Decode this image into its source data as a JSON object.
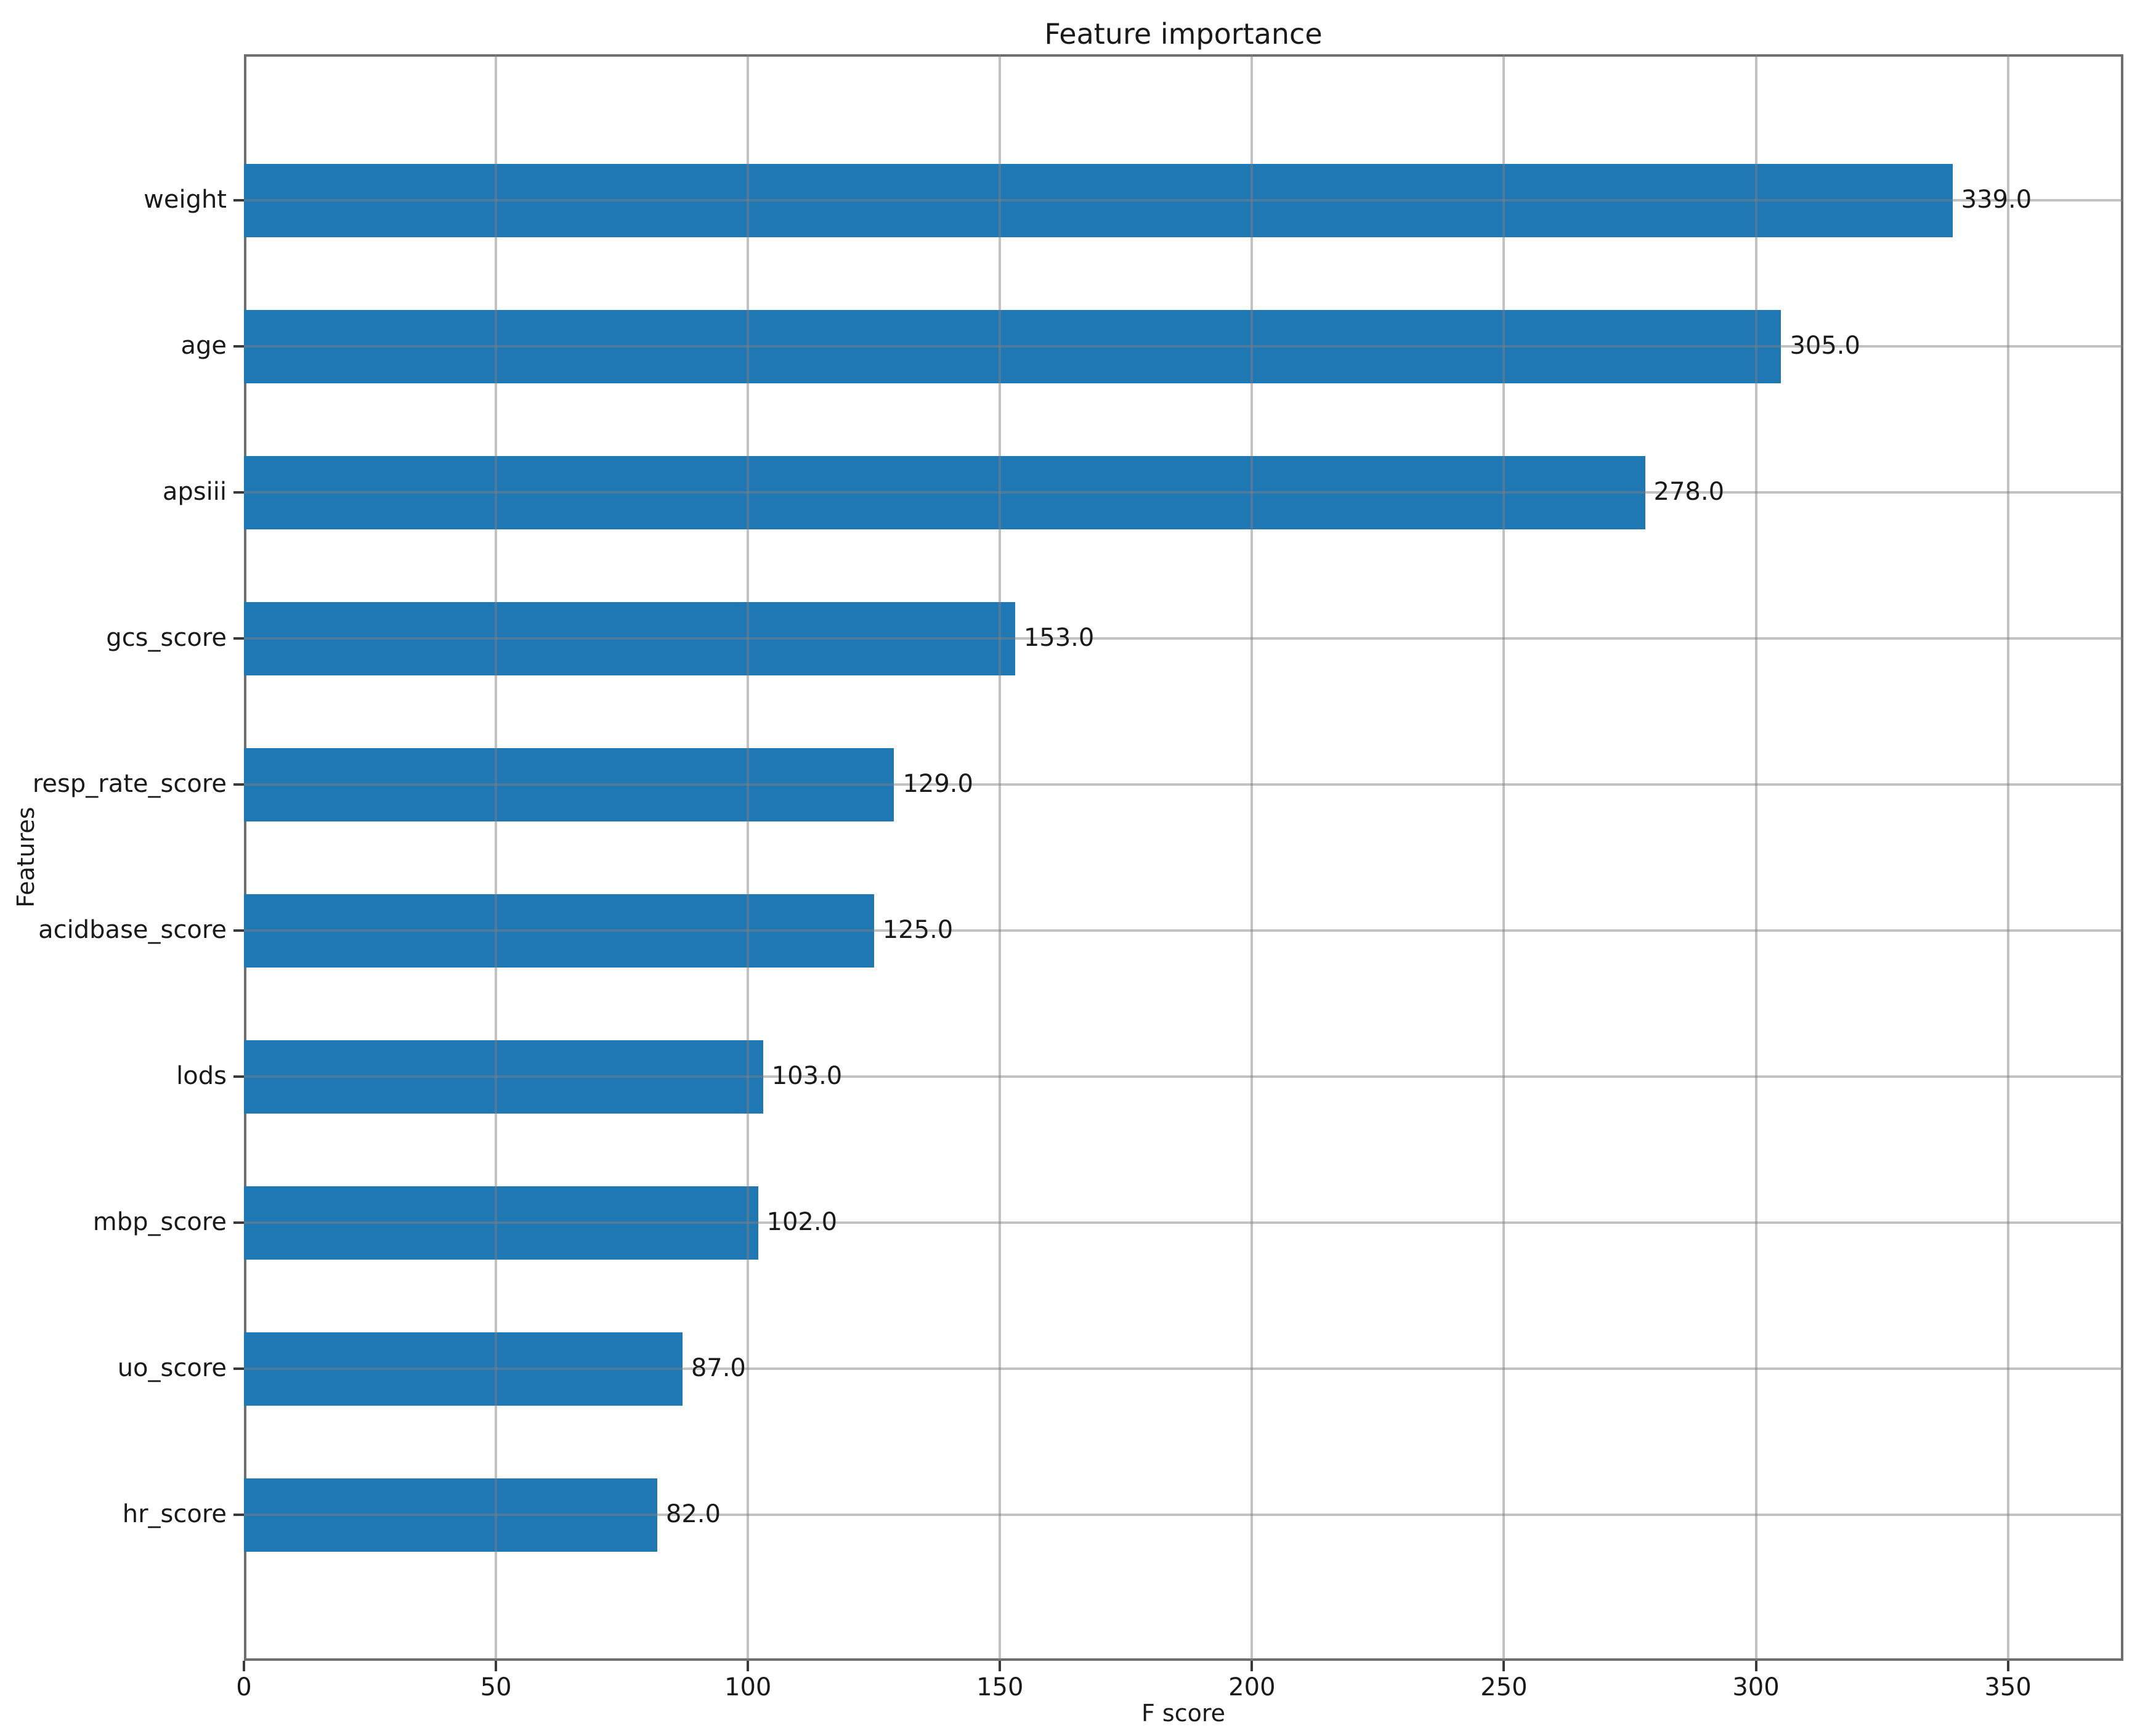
{
  "chart_data": {
    "type": "bar",
    "orientation": "horizontal",
    "title": "Feature importance",
    "xlabel": "F score",
    "ylabel": "Features",
    "categories": [
      "weight",
      "age",
      "apsiii",
      "gcs_score",
      "resp_rate_score",
      "acidbase_score",
      "lods",
      "mbp_score",
      "uo_score",
      "hr_score"
    ],
    "values": [
      339.0,
      305.0,
      278.0,
      153.0,
      129.0,
      125.0,
      103.0,
      102.0,
      87.0,
      82.0
    ],
    "value_labels": [
      "339.0",
      "305.0",
      "278.0",
      "153.0",
      "129.0",
      "125.0",
      "103.0",
      "102.0",
      "87.0",
      "82.0"
    ],
    "x_ticks": [
      0,
      50,
      100,
      150,
      200,
      250,
      300,
      350
    ],
    "x_tick_labels": [
      "0",
      "50",
      "100",
      "150",
      "200",
      "250",
      "300",
      "350"
    ],
    "xlim": [
      0,
      372.9
    ],
    "grid": true,
    "legend_position": "none",
    "bar_color": "#1f77b4",
    "grid_color": "#c0c0c0",
    "text_color": "#1a1a1a"
  }
}
